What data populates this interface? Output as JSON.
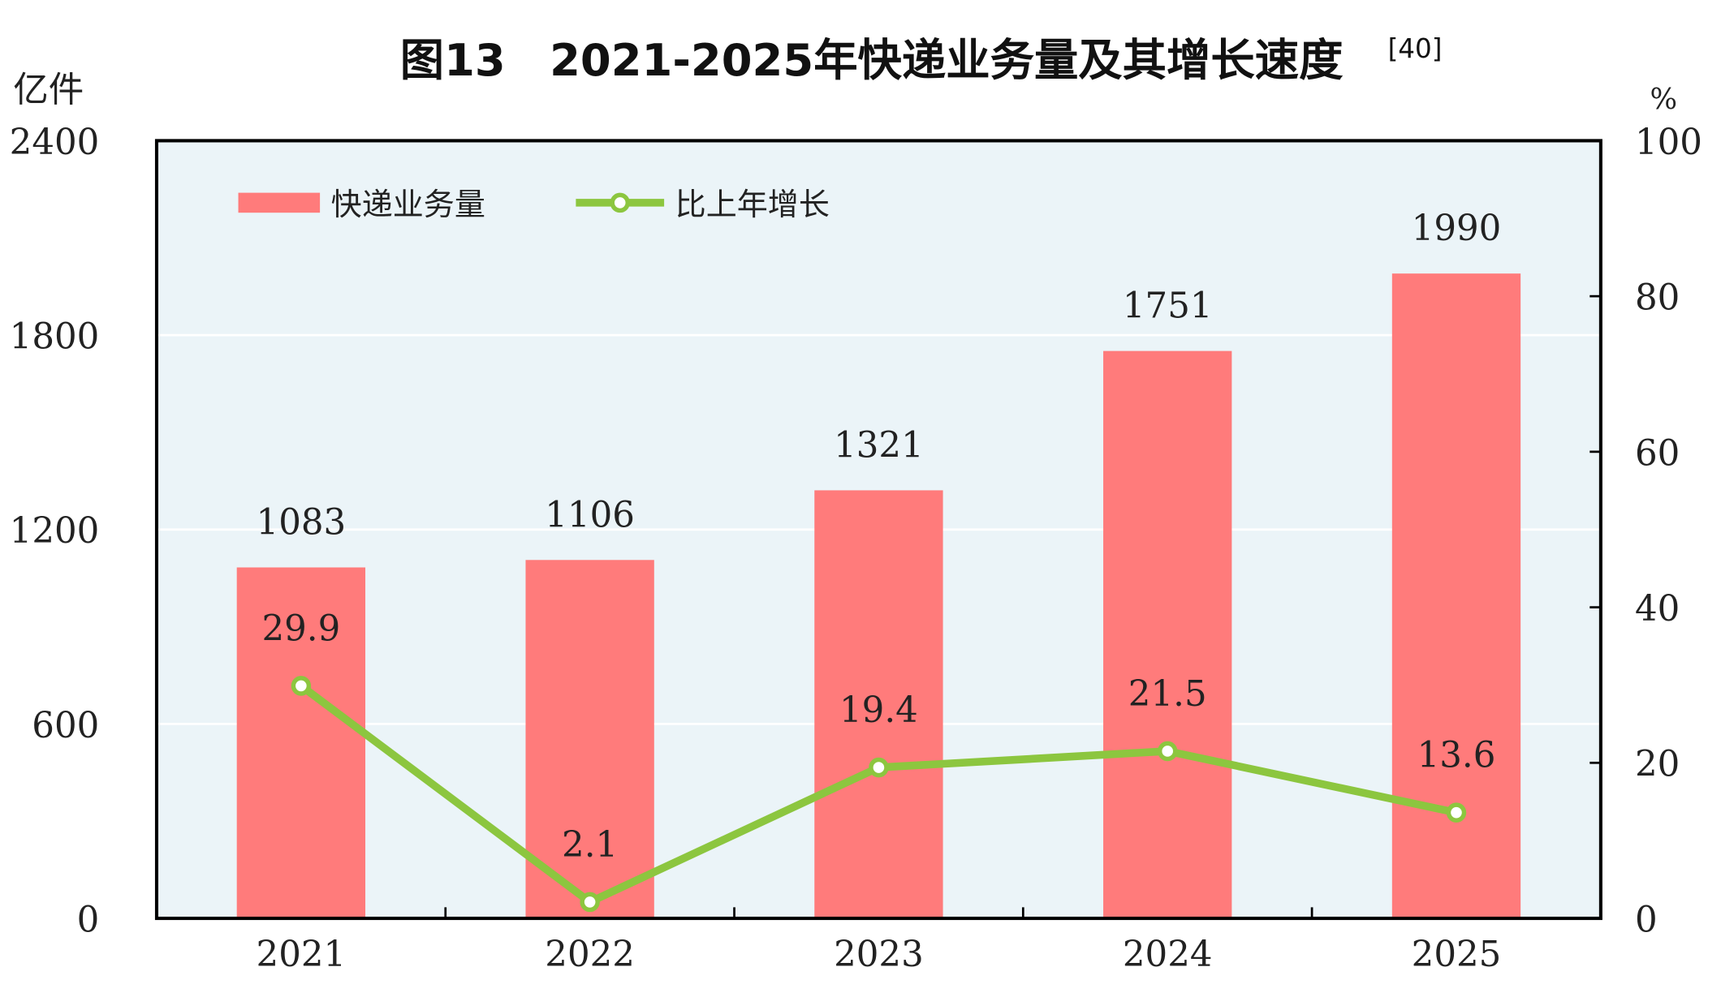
{
  "chart_data": {
    "type": "bar+line",
    "title": "图13　2021-2025年快递业务量及其增长速度",
    "title_note": "[40]",
    "categories": [
      "2021",
      "2022",
      "2023",
      "2024",
      "2025"
    ],
    "left_axis": {
      "unit_label": "亿件",
      "range": [
        0,
        2400
      ],
      "ticks": [
        "0",
        "600",
        "1200",
        "1800",
        "2400"
      ]
    },
    "right_axis": {
      "unit_label": "%",
      "range": [
        0,
        100
      ],
      "ticks": [
        "0",
        "20",
        "40",
        "60",
        "80",
        "100"
      ]
    },
    "grid": true,
    "legend_position": "top-left",
    "series": [
      {
        "name": "快递业务量",
        "type": "bar",
        "axis": "left",
        "color": "#ff7b7b",
        "values": [
          1083,
          1106,
          1321,
          1751,
          1990
        ],
        "labels": [
          "1083",
          "1106",
          "1321",
          "1751",
          "1990"
        ]
      },
      {
        "name": "比上年增长",
        "type": "line",
        "axis": "right",
        "color": "#8cc63f",
        "values": [
          29.9,
          2.1,
          19.4,
          21.5,
          13.6
        ],
        "labels": [
          "29.9",
          "2.1",
          "19.4",
          "21.5",
          "13.6"
        ]
      }
    ],
    "plot_background": "#ebf4f8"
  }
}
